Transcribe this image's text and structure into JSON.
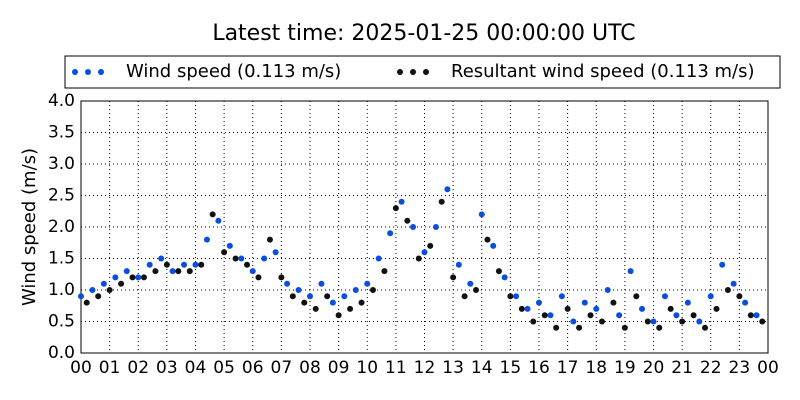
{
  "chart_data": {
    "type": "scatter",
    "title": "Latest time: 2025-01-25 00:00:00 UTC",
    "y_label": "Wind speed (m/s)",
    "xlim": [
      0,
      24
    ],
    "xticks": [
      {
        "value": 0,
        "label": "00"
      },
      {
        "value": 1,
        "label": "01"
      },
      {
        "value": 2,
        "label": "02"
      },
      {
        "value": 3,
        "label": "03"
      },
      {
        "value": 4,
        "label": "04"
      },
      {
        "value": 5,
        "label": "05"
      },
      {
        "value": 6,
        "label": "06"
      },
      {
        "value": 7,
        "label": "07"
      },
      {
        "value": 8,
        "label": "08"
      },
      {
        "value": 9,
        "label": "09"
      },
      {
        "value": 10,
        "label": "10"
      },
      {
        "value": 11,
        "label": "11"
      },
      {
        "value": 12,
        "label": "12"
      },
      {
        "value": 13,
        "label": "13"
      },
      {
        "value": 14,
        "label": "14"
      },
      {
        "value": 15,
        "label": "15"
      },
      {
        "value": 16,
        "label": "16"
      },
      {
        "value": 17,
        "label": "17"
      },
      {
        "value": 18,
        "label": "18"
      },
      {
        "value": 19,
        "label": "19"
      },
      {
        "value": 20,
        "label": "20"
      },
      {
        "value": 21,
        "label": "21"
      },
      {
        "value": 22,
        "label": "22"
      },
      {
        "value": 23,
        "label": "23"
      },
      {
        "value": 24,
        "label": "00"
      }
    ],
    "ylim": [
      0,
      4
    ],
    "yticks": [
      {
        "value": 0,
        "label": "0.0"
      },
      {
        "value": 0.5,
        "label": "0.5"
      },
      {
        "value": 1,
        "label": "1.0"
      },
      {
        "value": 1.5,
        "label": "1.5"
      },
      {
        "value": 2,
        "label": "2.0"
      },
      {
        "value": 2.5,
        "label": "2.5"
      },
      {
        "value": 3,
        "label": "3.0"
      },
      {
        "value": 3.5,
        "label": "3.5"
      },
      {
        "value": 4,
        "label": "4.0"
      }
    ],
    "grid": true,
    "legend": "top",
    "series": [
      {
        "name": "Wind speed (0.113 m/s)",
        "color": "#0a4ee0",
        "x": [
          0,
          0.4,
          0.8,
          1.2,
          1.6,
          2.0,
          2.4,
          2.8,
          3.2,
          3.6,
          4.0,
          4.4,
          4.8,
          5.2,
          5.6,
          6.0,
          6.4,
          6.8,
          7.2,
          7.6,
          8.0,
          8.4,
          8.8,
          9.2,
          9.6,
          10.0,
          10.4,
          10.8,
          11.2,
          11.6,
          12.0,
          12.4,
          12.8,
          13.2,
          13.6,
          14.0,
          14.4,
          14.8,
          15.2,
          15.6,
          16.0,
          16.4,
          16.8,
          17.2,
          17.6,
          18.0,
          18.4,
          18.8,
          19.2,
          19.6,
          20.0,
          20.4,
          20.8,
          21.2,
          21.6,
          22.0,
          22.4,
          22.8,
          23.2,
          23.6
        ],
        "values": [
          0.9,
          1.0,
          1.1,
          1.2,
          1.3,
          1.2,
          1.4,
          1.5,
          1.3,
          1.4,
          1.4,
          1.8,
          2.1,
          1.7,
          1.5,
          1.3,
          1.5,
          1.6,
          1.1,
          1.0,
          0.9,
          1.1,
          0.8,
          0.9,
          1.0,
          1.1,
          1.5,
          1.9,
          2.4,
          2.0,
          1.6,
          2.0,
          2.6,
          1.4,
          1.1,
          2.2,
          1.7,
          1.2,
          0.9,
          0.7,
          0.8,
          0.6,
          0.9,
          0.5,
          0.8,
          0.7,
          1.0,
          0.6,
          1.3,
          0.7,
          0.5,
          0.9,
          0.6,
          0.8,
          0.5,
          0.9,
          1.4,
          1.1,
          0.8,
          0.6
        ]
      },
      {
        "name": "Resultant wind speed (0.113 m/s)",
        "color": "#111111",
        "x": [
          0.2,
          0.6,
          1.0,
          1.4,
          1.8,
          2.2,
          2.6,
          3.0,
          3.4,
          3.8,
          4.2,
          4.6,
          5.0,
          5.4,
          5.8,
          6.2,
          6.6,
          7.0,
          7.4,
          7.8,
          8.2,
          8.6,
          9.0,
          9.4,
          9.8,
          10.2,
          10.6,
          11.0,
          11.4,
          11.8,
          12.2,
          12.6,
          13.0,
          13.4,
          13.8,
          14.2,
          14.6,
          15.0,
          15.4,
          15.8,
          16.2,
          16.6,
          17.0,
          17.4,
          17.8,
          18.2,
          18.6,
          19.0,
          19.4,
          19.8,
          20.2,
          20.6,
          21.0,
          21.4,
          21.8,
          22.2,
          22.6,
          23.0,
          23.4,
          23.8
        ],
        "values": [
          0.8,
          0.9,
          1.0,
          1.1,
          1.2,
          1.2,
          1.3,
          1.4,
          1.3,
          1.3,
          1.4,
          2.2,
          1.6,
          1.5,
          1.4,
          1.2,
          1.8,
          1.2,
          0.9,
          0.8,
          0.7,
          0.9,
          0.6,
          0.7,
          0.8,
          1.0,
          1.3,
          2.3,
          2.1,
          1.5,
          1.7,
          2.4,
          1.2,
          0.9,
          1.0,
          1.8,
          1.3,
          0.9,
          0.7,
          0.5,
          0.6,
          0.4,
          0.7,
          0.4,
          0.6,
          0.5,
          0.8,
          0.4,
          0.9,
          0.5,
          0.4,
          0.7,
          0.5,
          0.6,
          0.4,
          0.7,
          1.0,
          0.9,
          0.6,
          0.5
        ]
      }
    ]
  }
}
